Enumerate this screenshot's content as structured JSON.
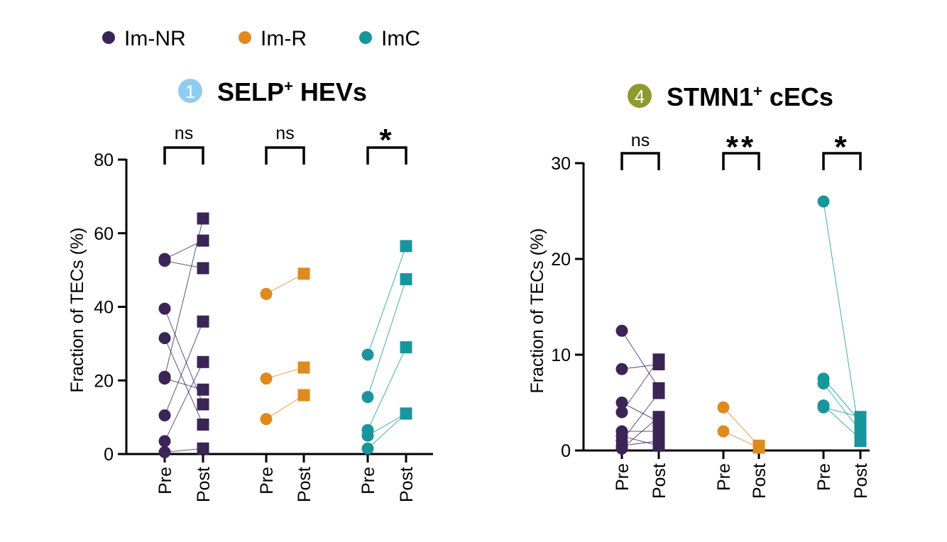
{
  "legend": [
    {
      "label": "Im-NR",
      "color": "#3b2456"
    },
    {
      "label": "Im-R",
      "color": "#e08a1e"
    },
    {
      "label": "ImC",
      "color": "#19959c"
    }
  ],
  "chart_data": [
    {
      "type": "scatter",
      "title": "SELP+ HEVs",
      "title_main": "SELP",
      "title_sup": "+",
      "title_rest": " HEVs",
      "badge": "1",
      "badge_color": "#8fcdf0",
      "ylabel": "Fraction of TECs (%)",
      "ylim": [
        0,
        80
      ],
      "yticks": [
        "0",
        "20",
        "40",
        "60",
        "80"
      ],
      "pre_label": "Pre",
      "post_label": "Post",
      "groups": [
        {
          "name": "Im-NR",
          "color": "#3b2456",
          "significance": "ns",
          "pairs": [
            [
              53,
              58
            ],
            [
              52.5,
              50.5
            ],
            [
              39.5,
              13.5
            ],
            [
              31.5,
              8
            ],
            [
              21,
              64
            ],
            [
              10.5,
              36
            ],
            [
              3.5,
              25
            ],
            [
              0.5,
              1.5
            ],
            [
              20.5,
              17.5
            ]
          ]
        },
        {
          "name": "Im-R",
          "color": "#e08a1e",
          "significance": "ns",
          "pairs": [
            [
              43.5,
              49
            ],
            [
              20.5,
              23.5
            ],
            [
              9.5,
              16
            ]
          ]
        },
        {
          "name": "ImC",
          "color": "#19959c",
          "significance": "*",
          "pairs": [
            [
              27,
              56.5
            ],
            [
              15.5,
              47.5
            ],
            [
              6.5,
              29
            ],
            [
              1.5,
              11
            ],
            [
              5,
              11
            ]
          ]
        }
      ]
    },
    {
      "type": "scatter",
      "title": "STMN1+ cECs",
      "title_main": "STMN1",
      "title_sup": "+",
      "title_rest": " cECs",
      "badge": "4",
      "badge_color": "#8f9a2e",
      "ylabel": "Fraction of TECs (%)",
      "ylim": [
        0,
        30
      ],
      "yticks": [
        "0",
        "10",
        "20",
        "30"
      ],
      "pre_label": "Pre",
      "post_label": "Post",
      "groups": [
        {
          "name": "Im-NR",
          "color": "#3b2456",
          "significance": "ns",
          "pairs": [
            [
              12.5,
              6.5
            ],
            [
              8.5,
              9
            ],
            [
              5,
              3
            ],
            [
              4,
              9.5
            ],
            [
              2,
              2
            ],
            [
              1.5,
              0.5
            ],
            [
              1,
              6
            ],
            [
              0.5,
              1
            ],
            [
              0.2,
              3.5
            ]
          ]
        },
        {
          "name": "Im-R",
          "color": "#e08a1e",
          "significance": "**",
          "pairs": [
            [
              4.5,
              0.5
            ],
            [
              2,
              0.3
            ]
          ]
        },
        {
          "name": "ImC",
          "color": "#19959c",
          "significance": "*",
          "pairs": [
            [
              26,
              1
            ],
            [
              7.5,
              3
            ],
            [
              7,
              2
            ],
            [
              4.7,
              1.2
            ],
            [
              4.5,
              3.5
            ]
          ]
        }
      ]
    }
  ]
}
